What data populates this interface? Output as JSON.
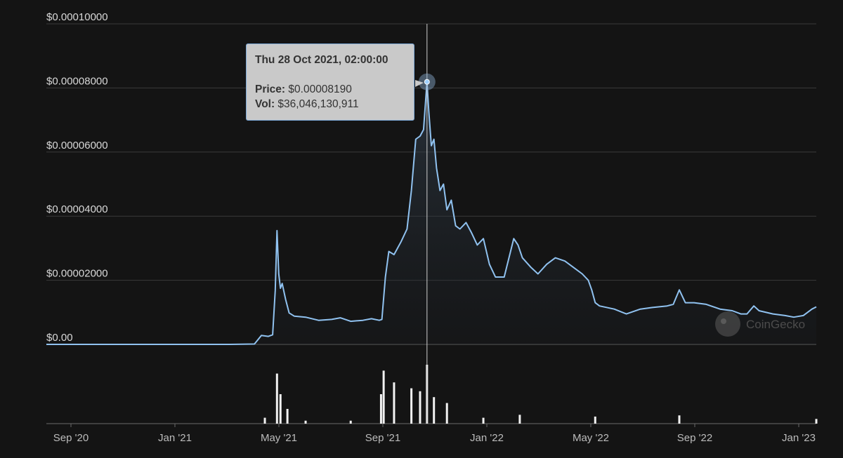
{
  "chart_data": {
    "type": "line",
    "xlabel": "",
    "ylabel": "",
    "x_ticks": [
      "Sep '20",
      "Jan '21",
      "May '21",
      "Sep '21",
      "Jan '22",
      "May '22",
      "Sep '22",
      "Jan '23"
    ],
    "y_ticks": [
      "$0.00",
      "$0.00002000",
      "$0.00004000",
      "$0.00006000",
      "$0.00008000",
      "$0.00010000"
    ],
    "ylim": [
      0,
      0.0001
    ],
    "xlim": [
      "2020-08-15",
      "2023-01-20"
    ],
    "grid": true,
    "legend": "none",
    "series": [
      {
        "color": "#90c2f0",
        "x": [
          "2020-08-15",
          "2020-10-01",
          "2020-12-01",
          "2021-02-01",
          "2021-03-15",
          "2021-04-12",
          "2021-04-20",
          "2021-04-28",
          "2021-05-03",
          "2021-05-06",
          "2021-05-08",
          "2021-05-10",
          "2021-05-12",
          "2021-05-14",
          "2021-05-18",
          "2021-05-22",
          "2021-05-28",
          "2021-06-10",
          "2021-06-25",
          "2021-07-10",
          "2021-07-20",
          "2021-08-01",
          "2021-08-15",
          "2021-08-25",
          "2021-09-03",
          "2021-09-06",
          "2021-09-10",
          "2021-09-14",
          "2021-09-20",
          "2021-09-28",
          "2021-10-05",
          "2021-10-10",
          "2021-10-15",
          "2021-10-20",
          "2021-10-24",
          "2021-10-28",
          "2021-10-30",
          "2021-11-02",
          "2021-11-05",
          "2021-11-08",
          "2021-11-12",
          "2021-11-16",
          "2021-11-20",
          "2021-11-25",
          "2021-11-30",
          "2021-12-05",
          "2021-12-12",
          "2021-12-18",
          "2021-12-25",
          "2022-01-01",
          "2022-01-08",
          "2022-01-15",
          "2022-01-20",
          "2022-01-25",
          "2022-02-05",
          "2022-02-10",
          "2022-02-15",
          "2022-02-25",
          "2022-03-05",
          "2022-03-15",
          "2022-03-25",
          "2022-04-05",
          "2022-04-15",
          "2022-04-25",
          "2022-05-02",
          "2022-05-06",
          "2022-05-10",
          "2022-05-15",
          "2022-06-01",
          "2022-06-15",
          "2022-07-01",
          "2022-07-15",
          "2022-08-01",
          "2022-08-08",
          "2022-08-15",
          "2022-08-22",
          "2022-09-01",
          "2022-09-15",
          "2022-10-01",
          "2022-10-15",
          "2022-10-25",
          "2022-11-01",
          "2022-11-09",
          "2022-11-15",
          "2022-12-01",
          "2022-12-15",
          "2022-12-25",
          "2023-01-05",
          "2023-01-15",
          "2023-01-20"
        ],
        "y": [
          0,
          0,
          0,
          0,
          0,
          1e-07,
          2.8e-06,
          2.5e-06,
          3e-06,
          1.68e-05,
          3.55e-05,
          2.2e-05,
          1.75e-05,
          1.9e-05,
          1.4e-05,
          9.8e-06,
          8.8e-06,
          8.5e-06,
          7.5e-06,
          7.8e-06,
          8.3e-06,
          7.2e-06,
          7.5e-06,
          8e-06,
          7.5e-06,
          7.8e-06,
          2.1e-05,
          2.9e-05,
          2.8e-05,
          3.2e-05,
          3.6e-05,
          4.8e-05,
          6.4e-05,
          6.5e-05,
          6.7e-05,
          8.19e-05,
          7.3e-05,
          6.2e-05,
          6.4e-05,
          5.5e-05,
          4.8e-05,
          5e-05,
          4.2e-05,
          4.5e-05,
          3.7e-05,
          3.6e-05,
          3.8e-05,
          3.5e-05,
          3.1e-05,
          3.3e-05,
          2.5e-05,
          2.1e-05,
          2.1e-05,
          2.1e-05,
          3.3e-05,
          3.1e-05,
          2.7e-05,
          2.4e-05,
          2.2e-05,
          2.5e-05,
          2.7e-05,
          2.6e-05,
          2.4e-05,
          2.2e-05,
          2e-05,
          1.7e-05,
          1.3e-05,
          1.2e-05,
          1.1e-05,
          9.5e-06,
          1.1e-05,
          1.15e-05,
          1.2e-05,
          1.25e-05,
          1.7e-05,
          1.3e-05,
          1.3e-05,
          1.25e-05,
          1.1e-05,
          1.05e-05,
          9.5e-06,
          9.5e-06,
          1.2e-05,
          1.05e-05,
          9.5e-06,
          9e-06,
          8.5e-06,
          9e-06,
          1.1e-05,
          1.17e-05
        ]
      }
    ],
    "volume_series": {
      "color": "#f2f2f2",
      "x": [
        "2021-04-24",
        "2021-05-08",
        "2021-05-12",
        "2021-05-20",
        "2021-06-10",
        "2021-08-01",
        "2021-09-05",
        "2021-09-08",
        "2021-09-20",
        "2021-10-10",
        "2021-10-20",
        "2021-10-28",
        "2021-11-05",
        "2021-11-20",
        "2022-01-01",
        "2022-02-12",
        "2022-05-10",
        "2022-08-15",
        "2023-01-20"
      ],
      "y": [
        0.1,
        0.85,
        0.5,
        0.25,
        0.05,
        0.05,
        0.5,
        0.9,
        0.7,
        0.6,
        0.55,
        1.0,
        0.45,
        0.35,
        0.1,
        0.15,
        0.12,
        0.14,
        0.08
      ]
    },
    "tooltip": {
      "x": "2021-10-28",
      "date_label": "Thu 28 Oct 2021, 02:00:00",
      "price_label": "Price:",
      "price_value": " $0.00008190",
      "vol_label": "Vol:",
      "vol_value": " $36,046,130,911"
    },
    "watermark": "CoinGecko"
  }
}
